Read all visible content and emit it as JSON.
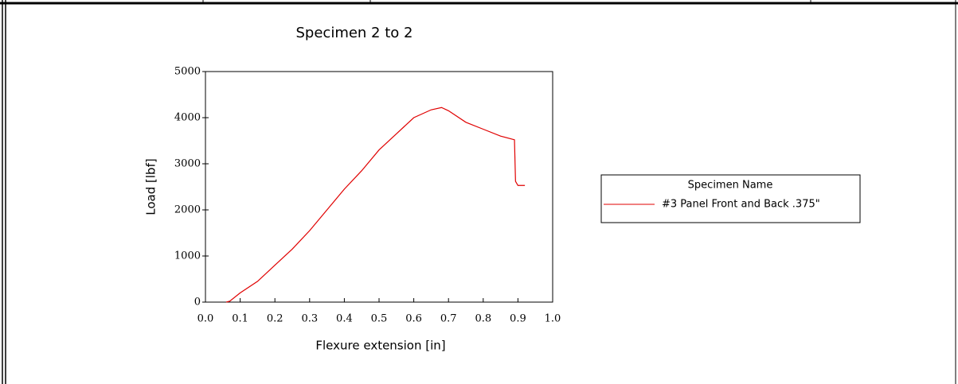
{
  "chart_data": {
    "type": "line",
    "title": "Specimen 2 to 2",
    "x_label": "Flexure extension [in]",
    "y_label": "Load [lbf]",
    "legend_title": "Specimen Name",
    "xlim": [
      0,
      1
    ],
    "ylim": [
      0,
      5000
    ],
    "xticks": [
      {
        "value": 0,
        "label": "0.0"
      },
      0.1,
      0.2,
      0.3,
      0.4,
      0.5,
      0.6,
      0.7,
      0.8,
      0.9,
      {
        "value": 1,
        "label": "1.0"
      }
    ],
    "yticks": [
      0,
      1000,
      2000,
      3000,
      4000,
      5000
    ],
    "series": [
      {
        "name": "#3 Panel Front and Back .375\"",
        "color": "#e00000",
        "x": [
          0.06,
          0.07,
          0.1,
          0.15,
          0.2,
          0.25,
          0.3,
          0.35,
          0.4,
          0.45,
          0.5,
          0.55,
          0.6,
          0.65,
          0.68,
          0.7,
          0.75,
          0.8,
          0.85,
          0.89,
          0.893,
          0.9,
          0.92
        ],
        "values": [
          0,
          20,
          200,
          450,
          800,
          1150,
          1550,
          2000,
          2450,
          2850,
          3300,
          3650,
          4000,
          4170,
          4220,
          4150,
          3900,
          3750,
          3600,
          3520,
          2620,
          2530,
          2530
        ]
      }
    ]
  }
}
